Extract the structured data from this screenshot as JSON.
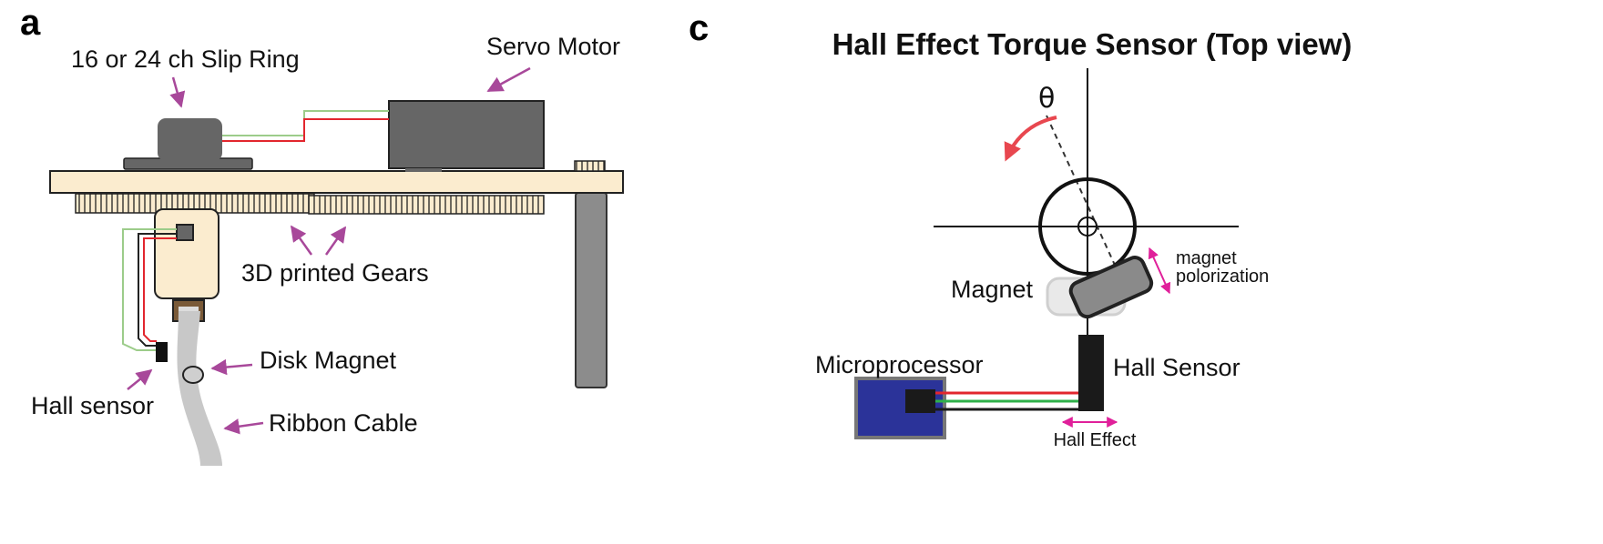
{
  "panel_a": {
    "letter": "a",
    "labels": {
      "slip_ring": "16 or 24 ch Slip Ring",
      "servo_motor": "Servo Motor",
      "gears": "3D printed Gears",
      "disk_magnet": "Disk Magnet",
      "hall_sensor": "Hall sensor",
      "ribbon_cable": "Ribbon Cable"
    }
  },
  "panel_c": {
    "letter": "c",
    "title": "Hall Effect Torque Sensor (Top view)",
    "labels": {
      "theta": "θ",
      "magnet": "Magnet",
      "magnet_polarization": [
        "magnet",
        "polorization"
      ],
      "microprocessor": "Microprocessor",
      "hall_sensor": "Hall Sensor",
      "hall_effect": "Hall Effect"
    }
  },
  "colors": {
    "arrow_purple": "#a8489a",
    "arrow_pink": "#e0209a",
    "rotation_red": "#e8474f",
    "wood": "#fbeccf",
    "motor_gray": "#666666",
    "microprocessor_blue": "#2b3399",
    "wire_red": "#e2262e",
    "wire_green": "#2fb04a",
    "wire_lightgreen": "#9ccc8a"
  }
}
